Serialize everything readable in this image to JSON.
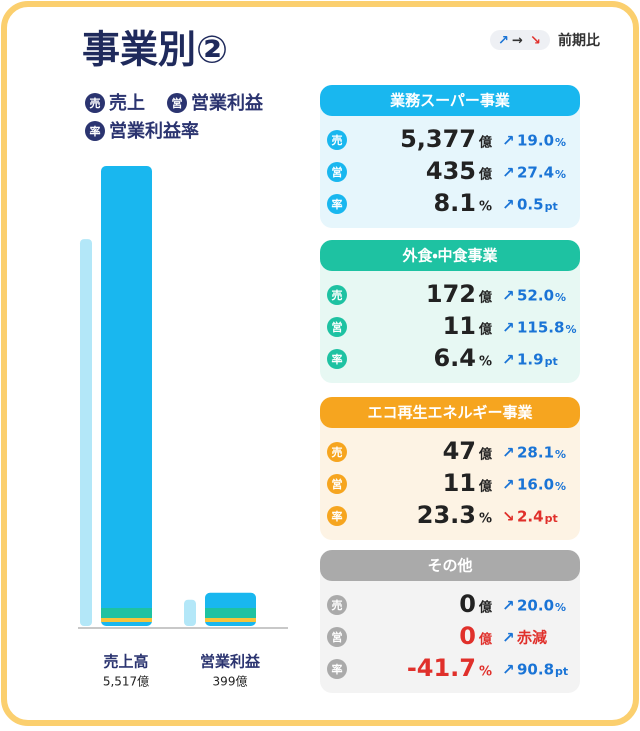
{
  "header": {
    "title": "事業別②",
    "comparison": "前期比"
  },
  "legend": [
    {
      "icon": "売",
      "label": "売上"
    },
    {
      "icon": "営",
      "label": "営業利益"
    },
    {
      "icon": "率",
      "label": "営業利益率"
    }
  ],
  "chart_data": {
    "type": "bar",
    "categories": [
      "売上高",
      "営業利益"
    ],
    "series": [
      {
        "color": "#b3e7f8",
        "values": [
          4640,
          315
        ]
      },
      {
        "color": "#19b7ef",
        "values": [
          5517,
          399
        ]
      }
    ],
    "value_labels": [
      "5,517億",
      "399億"
    ]
  },
  "segments": [
    {
      "name": "業務スーパー事業",
      "color": "#19b7ef",
      "background": "#e6f6fc",
      "rows": [
        {
          "label": "売",
          "value": "5,377",
          "unit": "億",
          "trend": "up",
          "change": "19.0",
          "change_unit": "%",
          "emphasis": "normal"
        },
        {
          "label": "営",
          "value": "435",
          "unit": "億",
          "trend": "up",
          "change": "27.4",
          "change_unit": "%",
          "emphasis": "normal"
        },
        {
          "label": "率",
          "value": "8.1",
          "unit": "%",
          "trend": "up",
          "change": "0.5",
          "change_unit": "pt",
          "emphasis": "normal"
        }
      ]
    },
    {
      "name": "外食・中食事業",
      "color": "#1ec2a2",
      "background": "#e7f8f3",
      "rows": [
        {
          "label": "売",
          "value": "172",
          "unit": "億",
          "trend": "up",
          "change": "52.0",
          "change_unit": "%",
          "emphasis": "normal"
        },
        {
          "label": "営",
          "value": "11",
          "unit": "億",
          "trend": "up",
          "change": "115.8",
          "change_unit": "%",
          "emphasis": "normal"
        },
        {
          "label": "率",
          "value": "6.4",
          "unit": "%",
          "trend": "up",
          "change": "1.9",
          "change_unit": "pt",
          "emphasis": "normal"
        }
      ]
    },
    {
      "name": "エコ再生エネルギー事業",
      "color": "#f6a51f",
      "background": "#fdf3e4",
      "rows": [
        {
          "label": "売",
          "value": "47",
          "unit": "億",
          "trend": "up",
          "change": "28.1",
          "change_unit": "%",
          "emphasis": "normal"
        },
        {
          "label": "営",
          "value": "11",
          "unit": "億",
          "trend": "up",
          "change": "16.0",
          "change_unit": "%",
          "emphasis": "normal"
        },
        {
          "label": "率",
          "value": "23.3",
          "unit": "%",
          "trend": "down",
          "change": "2.4",
          "change_unit": "pt",
          "emphasis": "normal"
        }
      ]
    },
    {
      "name": "その他",
      "color": "#aaaaaa",
      "background": "#f3f3f3",
      "rows": [
        {
          "label": "売",
          "value": "0",
          "unit": "億",
          "trend": "up",
          "change": "20.0",
          "change_unit": "%",
          "emphasis": "normal"
        },
        {
          "label": "営",
          "value": "0",
          "unit": "億",
          "trend": "up",
          "change": "赤減",
          "change_unit": "",
          "emphasis": "red"
        },
        {
          "label": "率",
          "value": "-41.7",
          "unit": "%",
          "trend": "up",
          "change": "90.8",
          "change_unit": "pt",
          "emphasis": "red"
        }
      ]
    }
  ]
}
